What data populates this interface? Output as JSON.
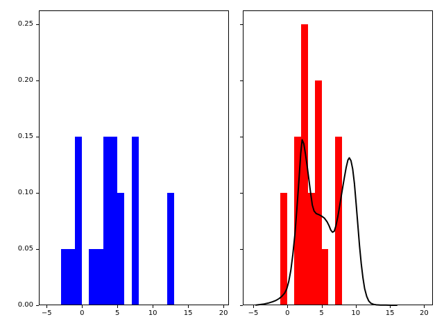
{
  "figure": {
    "background": "#ffffff",
    "title": ""
  },
  "chart_data": [
    {
      "type": "bar",
      "panel": "left",
      "title": "",
      "xlabel": "",
      "ylabel": "",
      "bar_color": "#0000ff",
      "xlim": [
        -6.11,
        20.78
      ],
      "ylim": [
        0,
        0.262
      ],
      "grid": false,
      "legend": null,
      "xticks": [
        -5,
        0,
        5,
        10,
        15,
        20
      ],
      "xtick_labels": [
        "−5",
        "0",
        "5",
        "10",
        "15",
        "20"
      ],
      "yticks": [
        0.0,
        0.05,
        0.1,
        0.15,
        0.2,
        0.25
      ],
      "ytick_labels": [
        "0.00",
        "0.05",
        "0.10",
        "0.15",
        "0.20",
        "0.25"
      ],
      "show_ytick_labels": true,
      "bars": [
        {
          "x0": -3,
          "x1": -2,
          "height": 0.05
        },
        {
          "x0": -2,
          "x1": -1,
          "height": 0.05
        },
        {
          "x0": -1,
          "x1": 0,
          "height": 0.15
        },
        {
          "x0": 1,
          "x1": 2,
          "height": 0.05
        },
        {
          "x0": 2,
          "x1": 3,
          "height": 0.05
        },
        {
          "x0": 3,
          "x1": 4,
          "height": 0.15
        },
        {
          "x0": 4,
          "x1": 5,
          "height": 0.15
        },
        {
          "x0": 5,
          "x1": 6,
          "height": 0.1
        },
        {
          "x0": 7,
          "x1": 8,
          "height": 0.15
        },
        {
          "x0": 12,
          "x1": 13,
          "height": 0.1
        }
      ]
    },
    {
      "type": "bar+line",
      "panel": "right",
      "title": "",
      "xlabel": "",
      "ylabel": "",
      "bar_color": "#ff0000",
      "xlim": [
        -6.52,
        21.28
      ],
      "ylim": [
        0,
        0.262
      ],
      "grid": false,
      "legend": null,
      "xticks": [
        -5,
        0,
        5,
        10,
        15,
        20
      ],
      "xtick_labels": [
        "−5",
        "0",
        "5",
        "10",
        "15",
        "20"
      ],
      "yticks": [
        0.0,
        0.05,
        0.1,
        0.15,
        0.2,
        0.25
      ],
      "ytick_labels": [
        "0.00",
        "0.05",
        "0.10",
        "0.15",
        "0.20",
        "0.25"
      ],
      "show_ytick_labels": false,
      "bars": [
        {
          "x0": -1,
          "x1": 0,
          "height": 0.1
        },
        {
          "x0": 1,
          "x1": 2,
          "height": 0.15
        },
        {
          "x0": 2,
          "x1": 3,
          "height": 0.25
        },
        {
          "x0": 3,
          "x1": 4,
          "height": 0.1
        },
        {
          "x0": 4,
          "x1": 5,
          "height": 0.2
        },
        {
          "x0": 5,
          "x1": 6,
          "height": 0.05
        },
        {
          "x0": 7,
          "x1": 8,
          "height": 0.15
        }
      ],
      "kde_curve": {
        "color": "#000000",
        "line_width": 2,
        "points": [
          [
            -4.6,
            0.0002
          ],
          [
            -4.0,
            0.0006
          ],
          [
            -3.4,
            0.0011
          ],
          [
            -2.8,
            0.0019
          ],
          [
            -2.2,
            0.003
          ],
          [
            -1.7,
            0.0042
          ],
          [
            -1.2,
            0.006
          ],
          [
            -0.8,
            0.008
          ],
          [
            -0.4,
            0.0108
          ],
          [
            -0.1,
            0.0145
          ],
          [
            0.2,
            0.021
          ],
          [
            0.5,
            0.031
          ],
          [
            0.8,
            0.045
          ],
          [
            1.1,
            0.063
          ],
          [
            1.4,
            0.087
          ],
          [
            1.7,
            0.112
          ],
          [
            1.95,
            0.135
          ],
          [
            2.15,
            0.147
          ],
          [
            2.4,
            0.1435
          ],
          [
            2.65,
            0.134
          ],
          [
            2.9,
            0.1235
          ],
          [
            3.15,
            0.1115
          ],
          [
            3.4,
            0.0995
          ],
          [
            3.65,
            0.089
          ],
          [
            3.9,
            0.0838
          ],
          [
            4.2,
            0.0815
          ],
          [
            4.6,
            0.0805
          ],
          [
            5.0,
            0.0792
          ],
          [
            5.4,
            0.0775
          ],
          [
            5.8,
            0.0742
          ],
          [
            6.1,
            0.0705
          ],
          [
            6.35,
            0.0668
          ],
          [
            6.6,
            0.0649
          ],
          [
            6.85,
            0.0658
          ],
          [
            7.1,
            0.0706
          ],
          [
            7.4,
            0.0795
          ],
          [
            7.7,
            0.0905
          ],
          [
            8.0,
            0.1015
          ],
          [
            8.3,
            0.1125
          ],
          [
            8.6,
            0.1225
          ],
          [
            8.85,
            0.129
          ],
          [
            9.05,
            0.131
          ],
          [
            9.3,
            0.1285
          ],
          [
            9.55,
            0.121
          ],
          [
            9.8,
            0.108
          ],
          [
            10.05,
            0.0905
          ],
          [
            10.3,
            0.0715
          ],
          [
            10.55,
            0.053
          ],
          [
            10.8,
            0.037
          ],
          [
            11.05,
            0.0242
          ],
          [
            11.3,
            0.0148
          ],
          [
            11.6,
            0.0078
          ],
          [
            11.9,
            0.0038
          ],
          [
            12.2,
            0.0018
          ],
          [
            12.6,
            0.0008
          ],
          [
            13.0,
            0.0004
          ],
          [
            13.6,
            0.0002
          ],
          [
            14.4,
            0.0001
          ],
          [
            15.2,
            0.0
          ],
          [
            16.0,
            0.0
          ]
        ]
      }
    }
  ]
}
